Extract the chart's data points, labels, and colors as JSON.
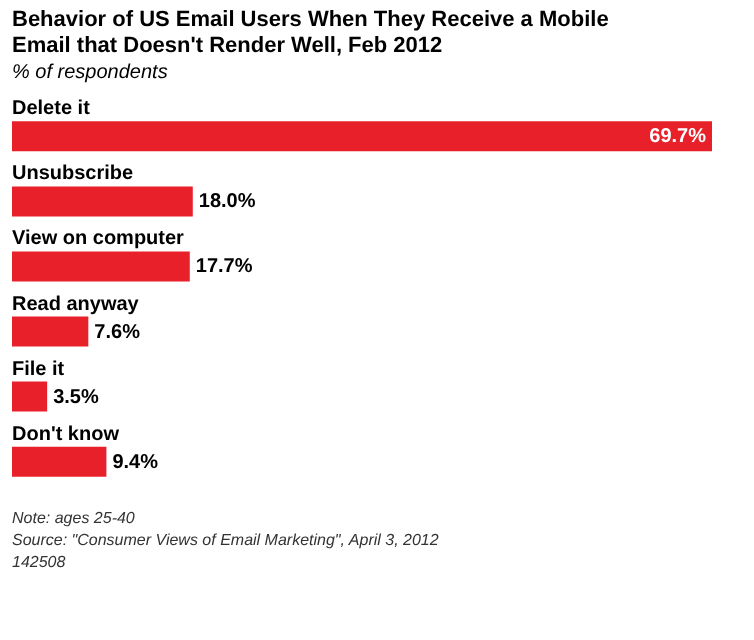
{
  "chart_data": {
    "type": "bar",
    "orientation": "horizontal",
    "title": "Behavior of US Email Users When They Receive a Mobile Email that Doesn't Render Well, Feb 2012",
    "subtitle": "% of respondents",
    "categories": [
      "Delete it",
      "Unsubscribe",
      "View on computer",
      "Read anyway",
      "File it",
      "Don't know"
    ],
    "values": [
      69.7,
      18.0,
      17.7,
      7.6,
      3.5,
      9.4
    ],
    "value_labels": [
      "69.7%",
      "18.0%",
      "17.7%",
      "7.6%",
      "3.5%",
      "9.4%"
    ],
    "color": "#e8202a",
    "annotations": [
      "Note: ages 25-40",
      "Source: \"Consumer Views of Email Marketing\", April 3, 2012",
      "142508"
    ]
  }
}
